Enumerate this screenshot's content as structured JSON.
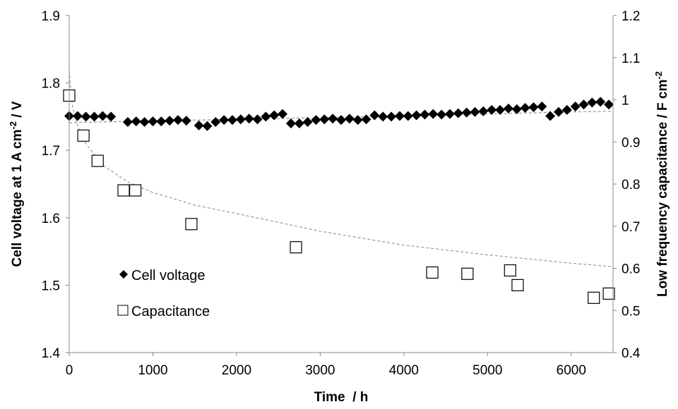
{
  "chart_data": {
    "type": "scatter",
    "x_axis": {
      "label_main": "Time",
      "label_unit": "/ h",
      "range": [
        0,
        6500
      ],
      "ticks": [
        0,
        1000,
        2000,
        3000,
        4000,
        5000,
        6000
      ],
      "tick_labels": [
        "0",
        "1000",
        "2000",
        "3000",
        "4000",
        "5000",
        "6000"
      ]
    },
    "y_left": {
      "label_before": "Cell voltage at 1 A cm",
      "label_sup": "-2",
      "label_after": " / V",
      "range": [
        1.4,
        1.9
      ],
      "ticks": [
        1.4,
        1.5,
        1.6,
        1.7,
        1.8,
        1.9
      ],
      "tick_labels": [
        "1.4",
        "1.5",
        "1.6",
        "1.7",
        "1.8",
        "1.9"
      ]
    },
    "y_right": {
      "label_before": "Low frequency capacitance / F cm",
      "label_sup": "-2",
      "range": [
        0.4,
        1.2
      ],
      "ticks": [
        0.4,
        0.5,
        0.6,
        0.7,
        0.8,
        0.9,
        1.0,
        1.1,
        1.2
      ],
      "tick_labels": [
        "0.4",
        "0.5",
        "0.6",
        "0.7",
        "0.8",
        "0.9",
        "1",
        "1.1",
        "1.2"
      ]
    },
    "grid": false,
    "legend_placement": "lower-left",
    "series": [
      {
        "name": "Cell voltage",
        "axis": "left",
        "marker": "diamond",
        "color": "#000000",
        "x": [
          0,
          100,
          200,
          300,
          400,
          500,
          700,
          800,
          900,
          1000,
          1100,
          1200,
          1300,
          1400,
          1550,
          1650,
          1750,
          1850,
          1950,
          2050,
          2150,
          2250,
          2350,
          2450,
          2550,
          2650,
          2750,
          2850,
          2950,
          3050,
          3150,
          3250,
          3350,
          3450,
          3550,
          3650,
          3750,
          3850,
          3950,
          4050,
          4150,
          4250,
          4350,
          4450,
          4550,
          4650,
          4750,
          4850,
          4950,
          5050,
          5150,
          5250,
          5350,
          5450,
          5550,
          5650,
          5750,
          5850,
          5950,
          6050,
          6150,
          6250,
          6350,
          6450
        ],
        "y": [
          1.751,
          1.751,
          1.75,
          1.75,
          1.751,
          1.75,
          1.742,
          1.743,
          1.742,
          1.743,
          1.743,
          1.744,
          1.745,
          1.744,
          1.737,
          1.736,
          1.742,
          1.745,
          1.745,
          1.746,
          1.747,
          1.746,
          1.75,
          1.752,
          1.754,
          1.74,
          1.74,
          1.742,
          1.745,
          1.746,
          1.747,
          1.745,
          1.747,
          1.745,
          1.746,
          1.752,
          1.75,
          1.75,
          1.751,
          1.751,
          1.752,
          1.753,
          1.754,
          1.753,
          1.754,
          1.755,
          1.756,
          1.757,
          1.758,
          1.76,
          1.76,
          1.762,
          1.761,
          1.763,
          1.764,
          1.765,
          1.751,
          1.757,
          1.76,
          1.765,
          1.768,
          1.771,
          1.772,
          1.768
        ]
      },
      {
        "name": "Capacitance",
        "axis": "right",
        "marker": "open-square",
        "color": "#000000",
        "x": [
          0,
          170,
          340,
          650,
          790,
          1460,
          2710,
          4340,
          4760,
          5270,
          5360,
          6270,
          6450
        ],
        "y": [
          1.01,
          0.915,
          0.855,
          0.785,
          0.785,
          0.705,
          0.65,
          0.59,
          0.587,
          0.595,
          0.56,
          0.53,
          0.54
        ]
      }
    ],
    "trendlines": [
      {
        "series": "Cell voltage",
        "axis": "left",
        "style": "dashed",
        "color": "#999999",
        "x": [
          0,
          700,
          2000,
          4000,
          6000,
          6500
        ],
        "y": [
          1.741,
          1.743,
          1.746,
          1.751,
          1.757,
          1.758
        ]
      },
      {
        "series": "Capacitance",
        "axis": "right",
        "style": "dashed",
        "color": "#999999",
        "x": [
          0,
          10,
          25,
          50,
          100,
          200,
          400,
          700,
          1000,
          1500,
          2000,
          3000,
          4000,
          5000,
          6000,
          6500
        ],
        "y": [
          1.07,
          1.04,
          1.005,
          0.975,
          0.94,
          0.895,
          0.845,
          0.805,
          0.78,
          0.75,
          0.73,
          0.688,
          0.655,
          0.632,
          0.612,
          0.604
        ]
      }
    ]
  }
}
